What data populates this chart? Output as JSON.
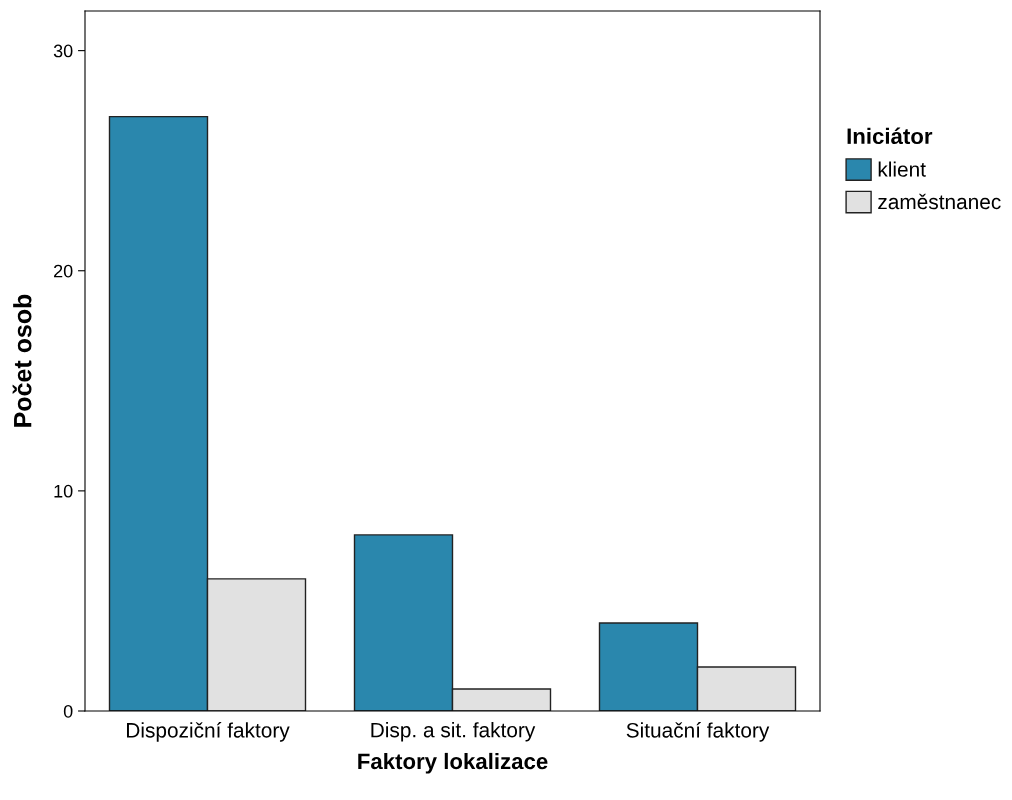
{
  "chart_data": {
    "type": "bar",
    "xlabel": "Faktory lokalizace",
    "ylabel": "Počet osob",
    "legend_title": "Iniciátor",
    "categories": [
      "Dispoziční faktory",
      "Disp. a sit. faktory",
      "Situační faktory"
    ],
    "series": [
      {
        "name": "klient",
        "color": "#2a87ad",
        "values": [
          27,
          8,
          4
        ]
      },
      {
        "name": "zaměstnanec",
        "color": "#e1e1e1",
        "values": [
          6,
          1,
          2
        ]
      }
    ],
    "ylim": [
      0,
      31.8
    ],
    "yticks": [
      0,
      10,
      20,
      30
    ],
    "grid": false,
    "legend": "right"
  }
}
